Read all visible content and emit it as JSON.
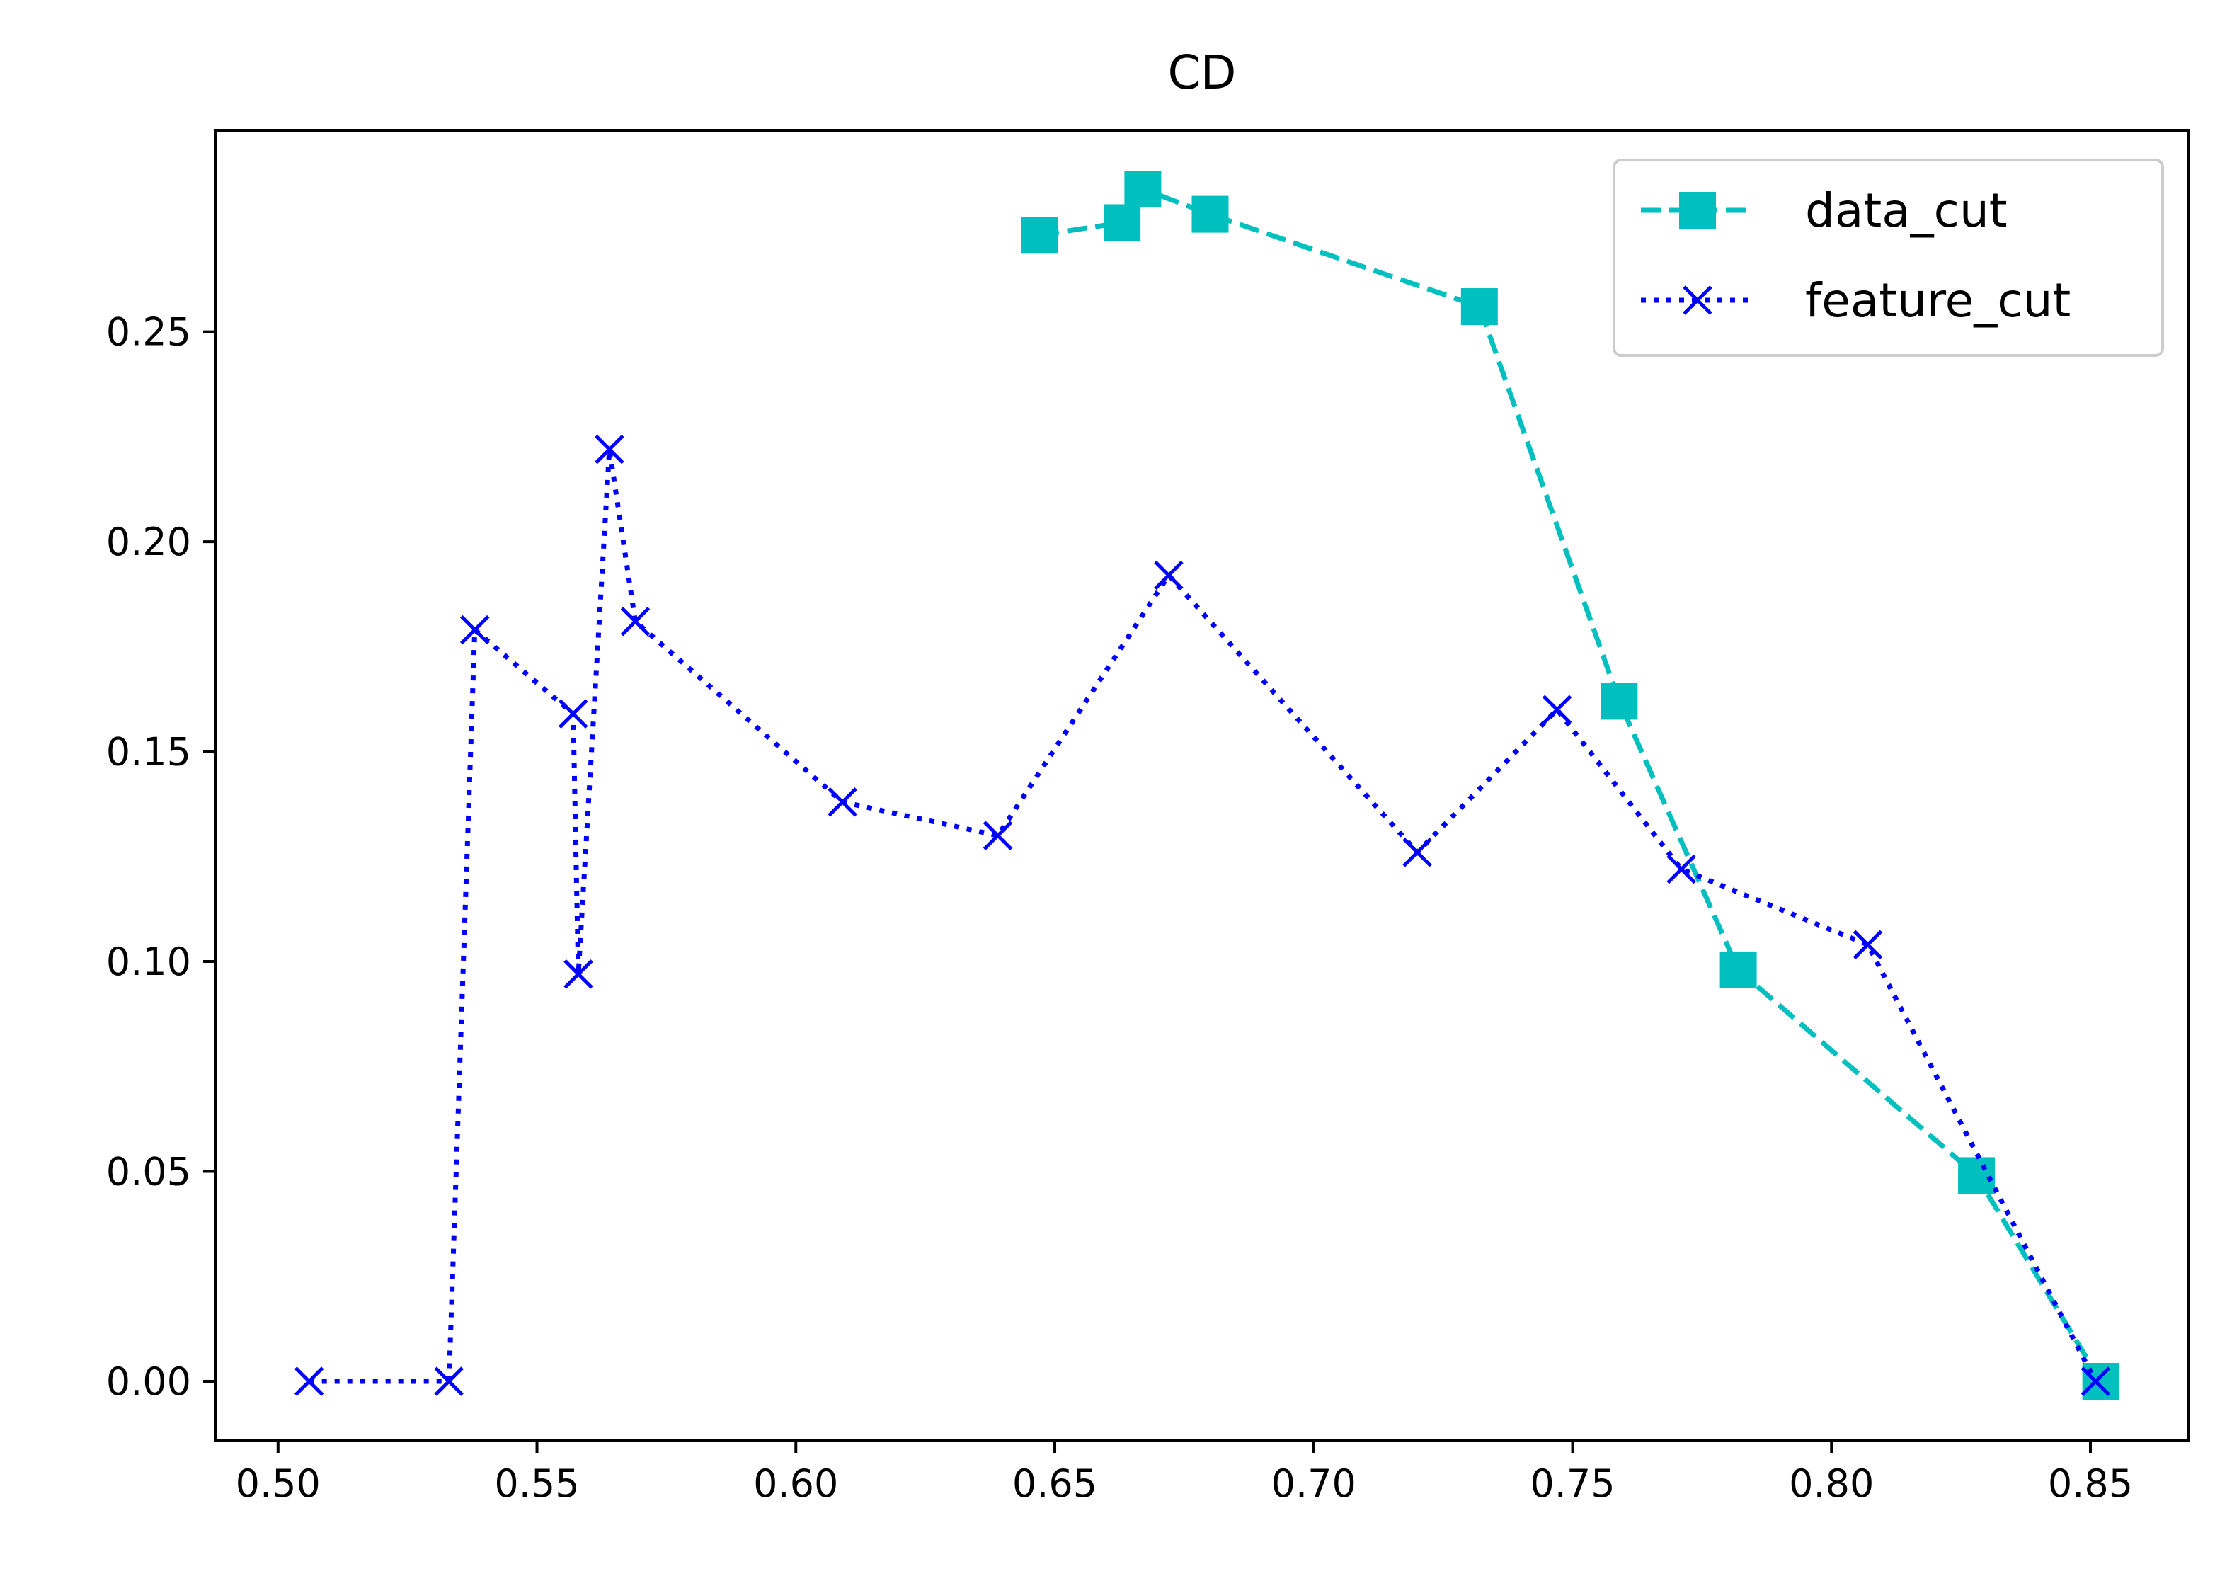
{
  "chart_data": {
    "type": "line",
    "title": "CD",
    "xlabel": "",
    "ylabel": "",
    "xlim": [
      0.488,
      0.869
    ],
    "ylim": [
      -0.014,
      0.298
    ],
    "xticks": [
      "0.50",
      "0.55",
      "0.60",
      "0.65",
      "0.70",
      "0.75",
      "0.80",
      "0.85"
    ],
    "yticks": [
      "0.00",
      "0.05",
      "0.10",
      "0.15",
      "0.20",
      "0.25"
    ],
    "grid": false,
    "legend": "top-right",
    "series": [
      {
        "name": "data_cut",
        "color": "#00bfbf",
        "linestyle": "dashed",
        "marker": "square",
        "x": [
          0.647,
          0.663,
          0.667,
          0.68,
          0.732,
          0.759,
          0.782,
          0.828,
          0.852
        ],
        "y": [
          0.273,
          0.276,
          0.284,
          0.278,
          0.256,
          0.162,
          0.098,
          0.049,
          0.0
        ]
      },
      {
        "name": "feature_cut",
        "color": "#0000ff",
        "linestyle": "dotted",
        "marker": "x",
        "x": [
          0.506,
          0.533,
          0.538,
          0.557,
          0.558,
          0.564,
          0.569,
          0.609,
          0.639,
          0.672,
          0.72,
          0.747,
          0.771,
          0.807,
          0.851
        ],
        "y": [
          0.0,
          0.0,
          0.179,
          0.159,
          0.097,
          0.222,
          0.181,
          0.138,
          0.13,
          0.192,
          0.126,
          0.16,
          0.122,
          0.104,
          0.0
        ]
      }
    ]
  }
}
